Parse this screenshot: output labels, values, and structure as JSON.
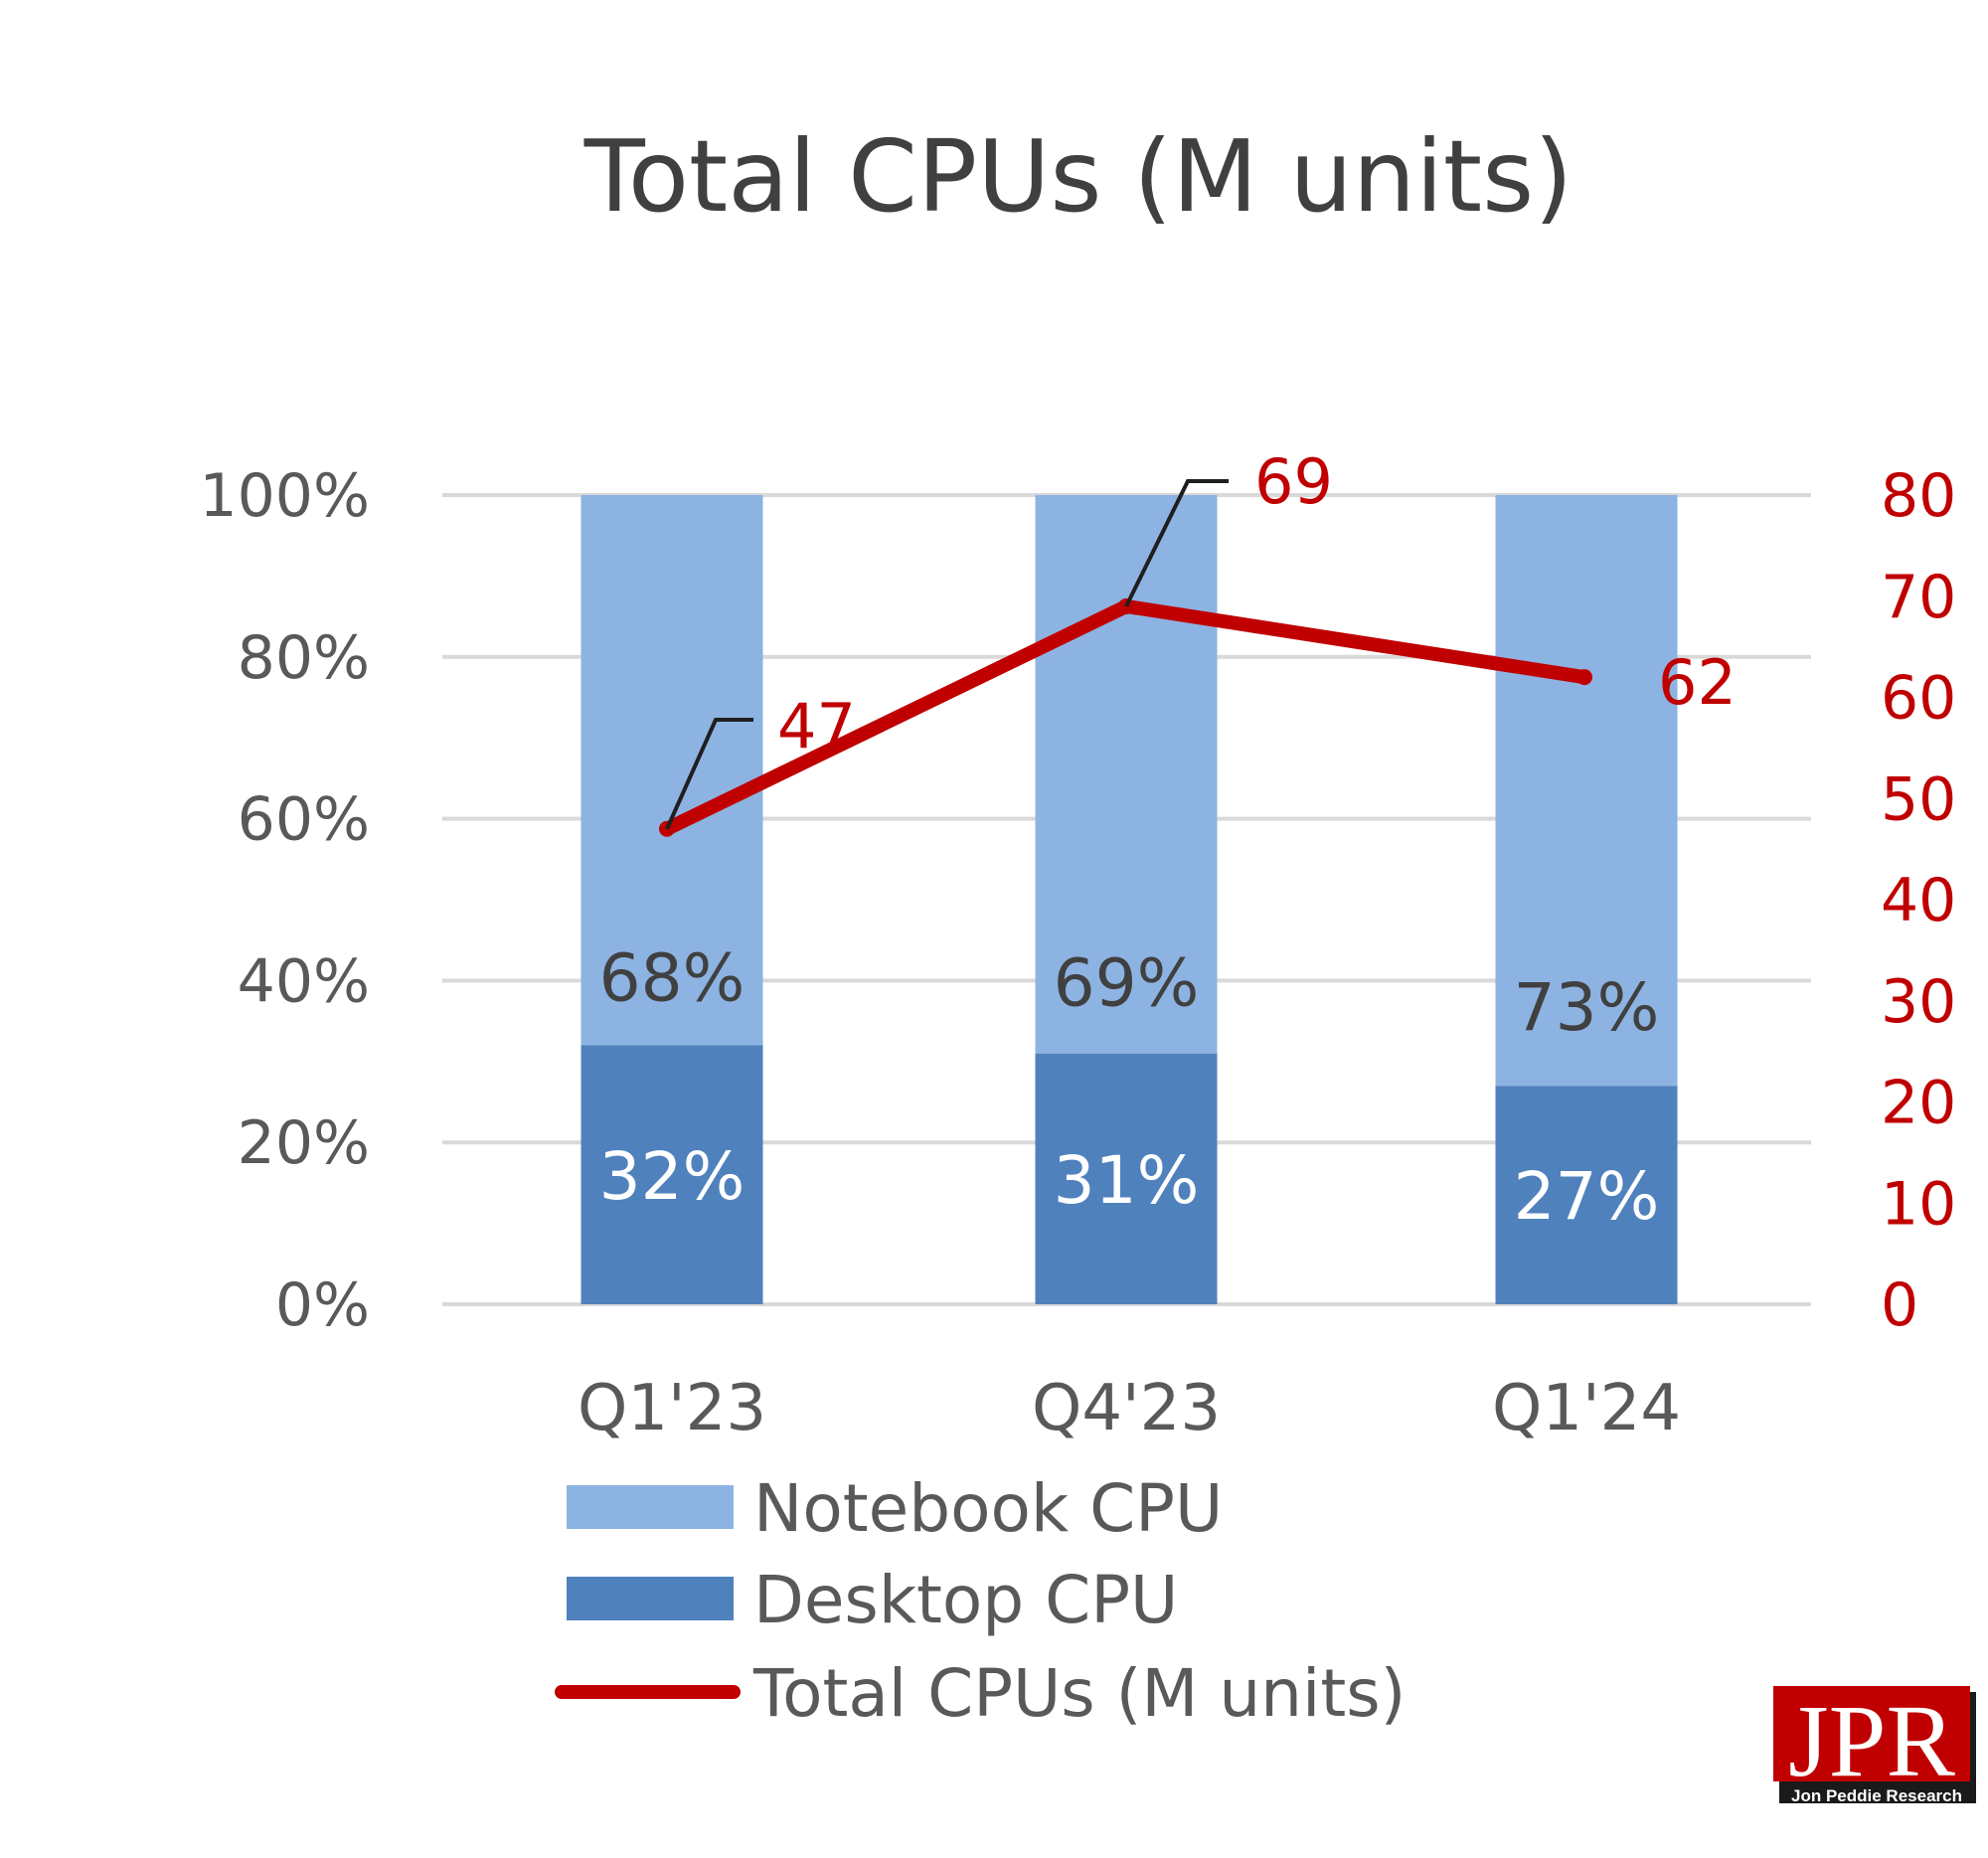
{
  "chart_data": {
    "type": "bar",
    "stacked": true,
    "title": "Total CPUs (M units)",
    "categories": [
      "Q1'23",
      "Q4'23",
      "Q1'24"
    ],
    "series": [
      {
        "name": "Desktop CPU",
        "type": "bar",
        "axis": "left",
        "values": [
          32,
          31,
          27
        ],
        "labels": [
          "32%",
          "31%",
          "27%"
        ],
        "color": "#4f81bd"
      },
      {
        "name": "Notebook CPU",
        "type": "bar",
        "axis": "left",
        "values": [
          68,
          69,
          73
        ],
        "labels": [
          "68%",
          "69%",
          "73%"
        ],
        "color": "#8db3e2"
      },
      {
        "name": "Total CPUs (M units)",
        "type": "line",
        "axis": "right",
        "values": [
          47,
          69,
          62
        ],
        "labels": [
          "47",
          "69",
          "62"
        ],
        "color": "#c00000"
      }
    ],
    "y_left": {
      "ylim": [
        0,
        100
      ],
      "ticks": [
        "0%",
        "20%",
        "40%",
        "60%",
        "80%",
        "100%"
      ]
    },
    "y_right": {
      "ylim": [
        0,
        80
      ],
      "ticks": [
        "0",
        "10",
        "20",
        "30",
        "40",
        "50",
        "60",
        "70",
        "80"
      ]
    },
    "grid": true,
    "legend": {
      "position": "bottom",
      "items": [
        "Notebook CPU",
        "Desktop CPU",
        "Total CPUs (M units)"
      ]
    }
  },
  "logo": {
    "text": "JPR",
    "subtext": "Jon Peddie Research"
  }
}
